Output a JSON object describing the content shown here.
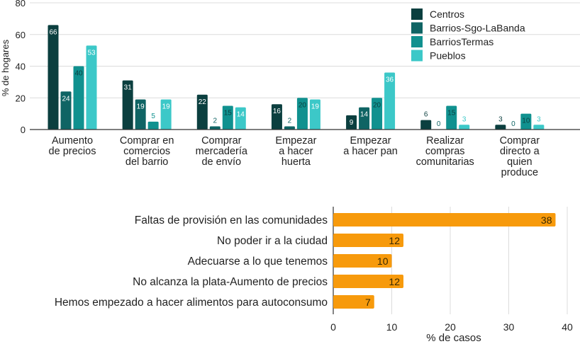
{
  "chart_data": [
    {
      "type": "bar",
      "title": "",
      "xlabel": "",
      "ylabel": "% de hogares",
      "ylim": [
        0,
        80
      ],
      "yticks": [
        0,
        20,
        40,
        60,
        80
      ],
      "grid": true,
      "legend_position": "top-right",
      "categories": [
        [
          "Aumento",
          "de precios"
        ],
        [
          "Comprar en",
          "comercios",
          "del barrio"
        ],
        [
          "Comprar",
          "mercadería",
          "de envío"
        ],
        [
          "Empezar",
          "a hacer",
          "huerta"
        ],
        [
          "Empezar",
          "a hacer pan"
        ],
        [
          "Realizar",
          "compras",
          "comunitarias"
        ],
        [
          "Comprar",
          "directo a",
          "quien",
          "produce"
        ]
      ],
      "series": [
        {
          "name": "Centros",
          "color": "#0b3f3f",
          "label_color": "#ffffff",
          "values": [
            66,
            31,
            22,
            16,
            9,
            6,
            3
          ]
        },
        {
          "name": "Barrios-Sgo-LaBanda",
          "color": "#0f6464",
          "label_color": "#ffffff",
          "values": [
            24,
            19,
            2,
            2,
            14,
            0,
            0
          ]
        },
        {
          "name": "BarriosTermas",
          "color": "#10918f",
          "label_color": "#0b3f3f",
          "values": [
            40,
            5,
            15,
            20,
            20,
            15,
            10
          ]
        },
        {
          "name": "Pueblos",
          "color": "#3cc8c8",
          "label_color": "#ffffff",
          "values": [
            53,
            19,
            14,
            19,
            36,
            3,
            3
          ]
        }
      ]
    },
    {
      "type": "bar",
      "orientation": "horizontal",
      "title": "",
      "xlabel": "% de casos",
      "ylabel": "",
      "xlim": [
        0,
        40
      ],
      "xticks": [
        0,
        10,
        20,
        30,
        40
      ],
      "grid": true,
      "bar_color": "#f79a0c",
      "categories": [
        "Faltas de provisión en las comunidades",
        "No poder ir a la ciudad",
        "Adecuarse a lo que tenemos",
        "No alcanza la plata-Aumento de precios",
        "Hemos empezado a hacer alimentos para autoconsumo"
      ],
      "values": [
        38,
        12,
        10,
        12,
        7
      ]
    }
  ]
}
